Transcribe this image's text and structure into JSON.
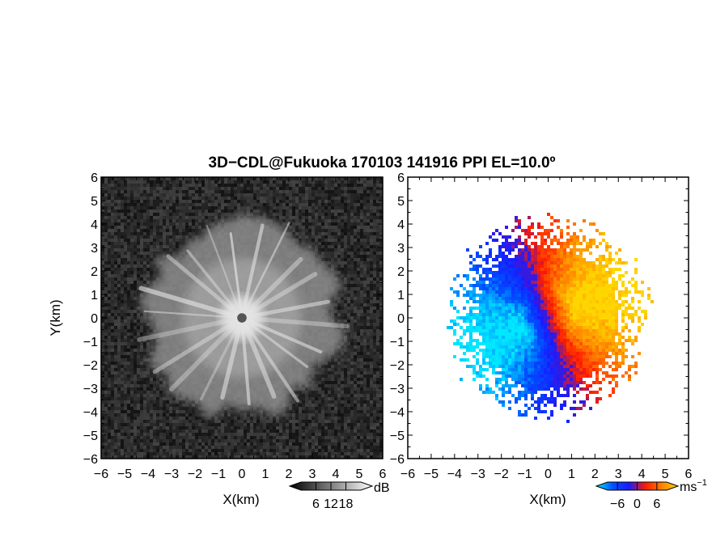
{
  "title": "3D−CDL@Fukuoka 170103 141916 PPI EL=10.0º",
  "chart_data": [
    {
      "type": "heatmap",
      "panel": "reflectivity",
      "xlabel": "X(km)",
      "ylabel": "Y(km)",
      "xlim": [
        -6,
        6
      ],
      "ylim": [
        -6,
        6
      ],
      "xticks": [
        "−6",
        "−5",
        "−4",
        "−3",
        "−2",
        "−1",
        "0",
        "1",
        "2",
        "3",
        "4",
        "5",
        "6"
      ],
      "yticks": [
        "6",
        "5",
        "4",
        "3",
        "2",
        "1",
        "0",
        "−1",
        "−2",
        "−3",
        "−4",
        "−5",
        "−6"
      ],
      "colorbar": {
        "unit": "dB",
        "ticks": [
          "6",
          "12",
          "18"
        ],
        "tick_values": [
          6,
          12,
          18
        ],
        "range": [
          0,
          24
        ]
      },
      "colormap": [
        "#000000",
        "#ffffff"
      ],
      "echo_radius_km": 4.6,
      "center_gap_km": 0.2
    },
    {
      "type": "heatmap",
      "panel": "doppler_velocity",
      "xlabel": "X(km)",
      "xlim": [
        -6,
        6
      ],
      "ylim": [
        -6,
        6
      ],
      "xticks": [
        "−6",
        "−5",
        "−4",
        "−3",
        "−2",
        "−1",
        "0",
        "1",
        "2",
        "3",
        "4",
        "5",
        "6"
      ],
      "yticks": [
        "6",
        "5",
        "4",
        "3",
        "2",
        "1",
        "0",
        "−1",
        "−2",
        "−3",
        "−4",
        "−5",
        "−6"
      ],
      "colorbar": {
        "unit": "ms",
        "unit_exponent": "−1",
        "ticks": [
          "−6",
          "0",
          "6"
        ],
        "tick_values": [
          -6,
          0,
          6
        ],
        "range": [
          -9,
          9
        ]
      },
      "colormap": [
        "#00e8ff",
        "#0050ff",
        "#1a1aff",
        "#ff1a00",
        "#ff8000",
        "#ffd700"
      ],
      "echo_radius_km": 4.6
    }
  ]
}
